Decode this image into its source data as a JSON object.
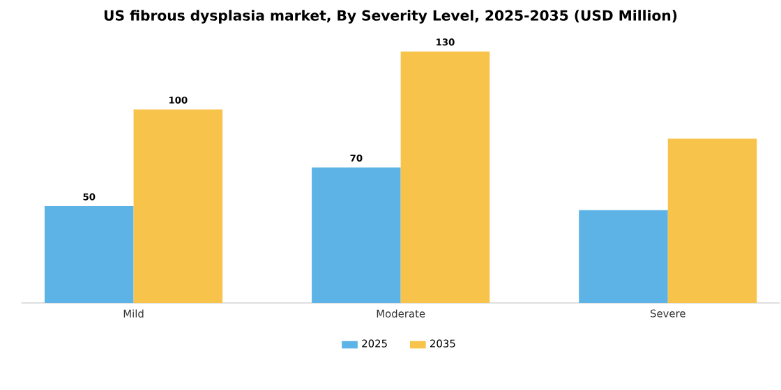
{
  "chart_data": {
    "type": "bar",
    "title": "US fibrous dysplasia market, By Severity Level, 2025-2035 (USD Million)",
    "categories": [
      "Mild",
      "Moderate",
      "Severe"
    ],
    "series": [
      {
        "name": "2025",
        "color": "#5db3e6",
        "values": [
          50,
          70,
          48
        ],
        "value_labels": [
          "50",
          "70",
          null
        ]
      },
      {
        "name": "2035",
        "color": "#f7c34a",
        "values": [
          100,
          130,
          85
        ],
        "value_labels": [
          "100",
          "130",
          null
        ]
      }
    ],
    "legend": "bottom"
  }
}
